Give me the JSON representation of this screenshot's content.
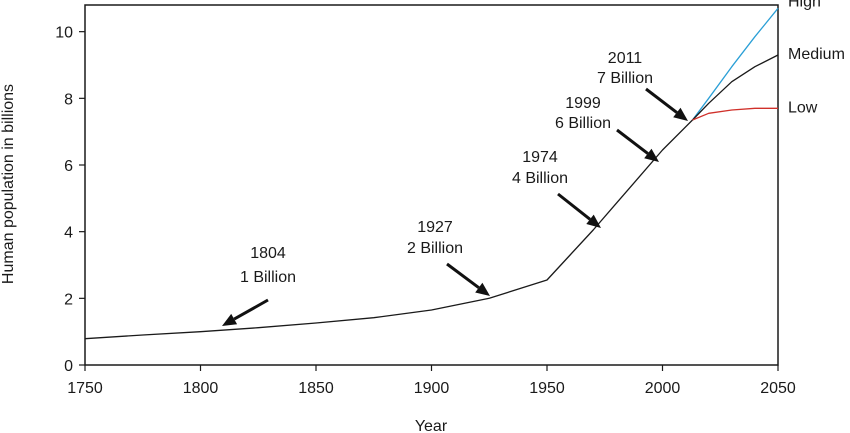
{
  "chart_data": {
    "type": "line",
    "xlabel": "Year",
    "ylabel": "Human population in billions",
    "xlim": [
      1750,
      2050
    ],
    "ylim": [
      0,
      10.8
    ],
    "x_ticks": [
      1750,
      1800,
      1850,
      1900,
      1950,
      2000,
      2050
    ],
    "y_ticks": [
      0,
      2,
      4,
      6,
      8,
      10
    ],
    "grid": false,
    "historical": {
      "color": "#1a1a1a",
      "x": [
        1750,
        1775,
        1800,
        1825,
        1850,
        1875,
        1900,
        1925,
        1950,
        1960,
        1970,
        1980,
        1990,
        2000,
        2013
      ],
      "y": [
        0.79,
        0.9,
        1.0,
        1.12,
        1.26,
        1.42,
        1.65,
        2.0,
        2.55,
        3.3,
        4.05,
        4.85,
        5.65,
        6.45,
        7.35
      ]
    },
    "projections": [
      {
        "name": "High",
        "color": "#2a9fd6",
        "x": [
          2013,
          2020,
          2030,
          2040,
          2050
        ],
        "y": [
          7.35,
          8.0,
          8.95,
          9.85,
          10.7
        ]
      },
      {
        "name": "Medium",
        "color": "#1a1a1a",
        "x": [
          2013,
          2020,
          2030,
          2040,
          2050
        ],
        "y": [
          7.35,
          7.85,
          8.5,
          8.95,
          9.3
        ]
      },
      {
        "name": "Low",
        "color": "#d0302a",
        "x": [
          2013,
          2020,
          2030,
          2040,
          2050
        ],
        "y": [
          7.35,
          7.55,
          7.65,
          7.7,
          7.7
        ]
      }
    ],
    "annotations": [
      {
        "year": "1804",
        "label": "1 Billion",
        "x": 1804,
        "y": 1.0
      },
      {
        "year": "1927",
        "label": "2 Billion",
        "x": 1927,
        "y": 2.0
      },
      {
        "year": "1974",
        "label": "4 Billion",
        "x": 1974,
        "y": 4.0
      },
      {
        "year": "1999",
        "label": "6 Billion",
        "x": 1999,
        "y": 6.0
      },
      {
        "year": "2011",
        "label": "7 Billion",
        "x": 2011,
        "y": 7.2
      }
    ]
  }
}
